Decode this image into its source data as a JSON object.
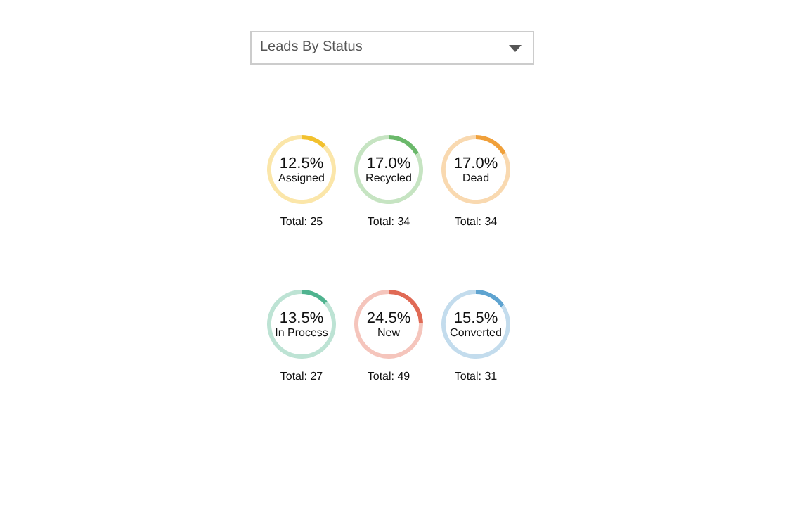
{
  "chart_data": [
    {
      "type": "other",
      "title": "Leads By Status"
    },
    {
      "type": "donut",
      "categories": [
        "Assigned",
        null
      ],
      "values": [
        12.5,
        87.5
      ],
      "colors": [
        "#f2c12e",
        "#fbe6a9"
      ],
      "value_labels": [
        "12.5%",
        null
      ],
      "annotations": [
        "Total: 25"
      ]
    },
    {
      "type": "donut",
      "categories": [
        "Recycled",
        null
      ],
      "values": [
        17.0,
        83.0
      ],
      "colors": [
        "#6ab86a",
        "#c6e4c2"
      ],
      "value_labels": [
        "17.0%",
        null
      ],
      "annotations": [
        "Total: 34"
      ]
    },
    {
      "type": "donut",
      "categories": [
        "Dead",
        null
      ],
      "values": [
        17.0,
        83.0
      ],
      "colors": [
        "#f0a03a",
        "#f9d9b0"
      ],
      "value_labels": [
        "17.0%",
        null
      ],
      "annotations": [
        "Total: 34"
      ]
    },
    {
      "type": "donut",
      "categories": [
        "In Process",
        null
      ],
      "values": [
        13.5,
        86.5
      ],
      "colors": [
        "#4fb38f",
        "#bde3d4"
      ],
      "value_labels": [
        "13.5%",
        null
      ],
      "annotations": [
        "Total: 27"
      ]
    },
    {
      "type": "donut",
      "categories": [
        "New",
        null
      ],
      "values": [
        24.5,
        75.5
      ],
      "colors": [
        "#e06a55",
        "#f5c5bc"
      ],
      "value_labels": [
        "24.5%",
        null
      ],
      "annotations": [
        "Total: 49"
      ]
    },
    {
      "type": "donut",
      "categories": [
        "Converted",
        null
      ],
      "values": [
        15.5,
        84.5
      ],
      "colors": [
        "#5ea3d0",
        "#c3dced"
      ],
      "value_labels": [
        "15.5%",
        null
      ],
      "annotations": [
        "Total: 31"
      ]
    }
  ]
}
